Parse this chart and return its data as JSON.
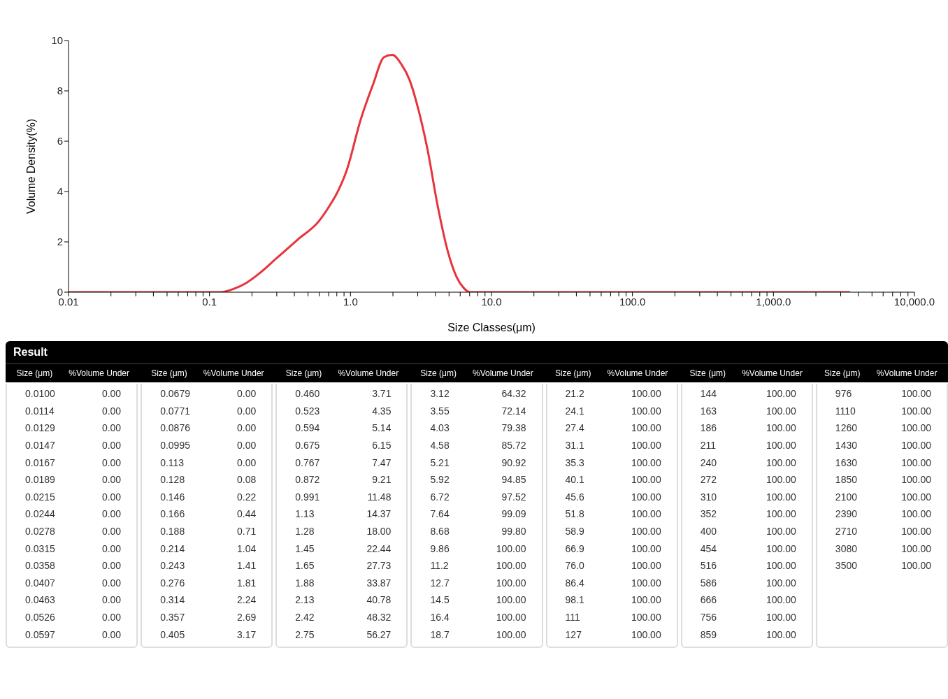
{
  "chart_data": [
    {
      "type": "line",
      "xlabel": "Size Classes(μm)",
      "ylabel": "Volume Density(%)",
      "log": "x",
      "marker": "none",
      "line_style": "solid",
      "x": [
        0.01,
        0.12,
        0.15,
        0.179,
        0.225,
        0.299,
        0.422,
        0.594,
        0.706,
        0.819,
        0.94,
        1.18,
        1.45,
        1.73,
        1.98,
        2.3,
        2.63,
        2.95,
        3.51,
        4.16,
        4.94,
        5.66,
        6.35,
        7.0,
        3500
      ],
      "series": [
        {
          "color": "#e8323c",
          "values": [
            0,
            0,
            0.14,
            0.34,
            0.74,
            1.35,
            2.09,
            2.81,
            3.41,
            4.04,
            4.84,
            6.85,
            8.28,
            9.34,
            9.43,
            9.05,
            8.42,
            7.51,
            5.7,
            3.41,
            1.55,
            0.6,
            0.17,
            0,
            0
          ]
        }
      ],
      "xlim": [
        0.01,
        10000
      ],
      "ylim": [
        0,
        10
      ],
      "yticks": [
        0,
        2,
        4,
        6,
        8,
        10
      ],
      "xticks": [
        0.01,
        {
          "value": 0.02,
          "label": null
        },
        {
          "value": 0.03,
          "label": null
        },
        {
          "value": 0.04,
          "label": null
        },
        {
          "value": 0.05,
          "label": null
        },
        {
          "value": 0.06,
          "label": null
        },
        {
          "value": 0.07,
          "label": null
        },
        {
          "value": 0.08,
          "label": null
        },
        {
          "value": 0.09,
          "label": null
        },
        0.1,
        {
          "value": 0.2,
          "label": null
        },
        {
          "value": 0.3,
          "label": null
        },
        {
          "value": 0.4,
          "label": null
        },
        {
          "value": 0.5,
          "label": null
        },
        {
          "value": 0.6,
          "label": null
        },
        {
          "value": 0.7,
          "label": null
        },
        {
          "value": 0.8,
          "label": null
        },
        {
          "value": 0.9,
          "label": null
        },
        {
          "value": 1,
          "label": "1.0"
        },
        {
          "value": 2,
          "label": null
        },
        {
          "value": 3,
          "label": null
        },
        {
          "value": 4,
          "label": null
        },
        {
          "value": 5,
          "label": null
        },
        {
          "value": 6,
          "label": null
        },
        {
          "value": 7,
          "label": null
        },
        {
          "value": 8,
          "label": null
        },
        {
          "value": 9,
          "label": null
        },
        {
          "value": 10,
          "label": "10.0"
        },
        {
          "value": 20,
          "label": null
        },
        {
          "value": 30,
          "label": null
        },
        {
          "value": 40,
          "label": null
        },
        {
          "value": 50,
          "label": null
        },
        {
          "value": 60,
          "label": null
        },
        {
          "value": 70,
          "label": null
        },
        {
          "value": 80,
          "label": null
        },
        {
          "value": 90,
          "label": null
        },
        {
          "value": 100,
          "label": "100.0"
        },
        {
          "value": 200,
          "label": null
        },
        {
          "value": 300,
          "label": null
        },
        {
          "value": 400,
          "label": null
        },
        {
          "value": 500,
          "label": null
        },
        {
          "value": 600,
          "label": null
        },
        {
          "value": 700,
          "label": null
        },
        {
          "value": 800,
          "label": null
        },
        {
          "value": 900,
          "label": null
        },
        {
          "value": 1000,
          "label": "1,000.0"
        },
        {
          "value": 2000,
          "label": null
        },
        {
          "value": 3000,
          "label": null
        },
        {
          "value": 4000,
          "label": null
        },
        {
          "value": 5000,
          "label": null
        },
        {
          "value": 6000,
          "label": null
        },
        {
          "value": 7000,
          "label": null
        },
        {
          "value": 8000,
          "label": null
        },
        {
          "value": 9000,
          "label": null
        },
        {
          "value": 10000,
          "label": "10,000.0"
        }
      ]
    },
    {
      "type": "other",
      "title": "Result",
      "xlabel": "Size (μm)",
      "ylabel": "%Volume Under",
      "categories": [
        "0.0100",
        "0.0114",
        "0.0129",
        "0.0147",
        "0.0167",
        "0.0189",
        "0.0215",
        "0.0244",
        "0.0278",
        "0.0315",
        "0.0358",
        "0.0407",
        "0.0463",
        "0.0526",
        "0.0597",
        "0.0679",
        "0.0771",
        "0.0876",
        "0.0995",
        "0.113",
        "0.128",
        "0.146",
        "0.166",
        "0.188",
        "0.214",
        "0.243",
        "0.276",
        "0.314",
        "0.357",
        "0.405",
        "0.460",
        "0.523",
        "0.594",
        "0.675",
        "0.767",
        "0.872",
        "0.991",
        "1.13",
        "1.28",
        "1.45",
        "1.65",
        "1.88",
        "2.13",
        "2.42",
        "2.75",
        "3.12",
        "3.55",
        "4.03",
        "4.58",
        "5.21",
        "5.92",
        "6.72",
        "7.64",
        "8.68",
        "9.86",
        "11.2",
        "12.7",
        "14.5",
        "16.4",
        "18.7",
        "21.2",
        "24.1",
        "27.4",
        "31.1",
        "35.3",
        "40.1",
        "45.6",
        "51.8",
        "58.9",
        "66.9",
        "76.0",
        "86.4",
        "98.1",
        "111",
        "127",
        "144",
        "163",
        "186",
        "211",
        "240",
        "272",
        "310",
        "352",
        "400",
        "454",
        "516",
        "586",
        "666",
        "756",
        "859",
        "976",
        "1110",
        "1260",
        "1430",
        "1630",
        "1850",
        "2100",
        "2390",
        "2710",
        "3080",
        "3500"
      ],
      "value_labels": [
        "0.00",
        "0.00",
        "0.00",
        "0.00",
        "0.00",
        "0.00",
        "0.00",
        "0.00",
        "0.00",
        "0.00",
        "0.00",
        "0.00",
        "0.00",
        "0.00",
        "0.00",
        "0.00",
        "0.00",
        "0.00",
        "0.00",
        "0.00",
        "0.08",
        "0.22",
        "0.44",
        "0.71",
        "1.04",
        "1.41",
        "1.81",
        "2.24",
        "2.69",
        "3.17",
        "3.71",
        "4.35",
        "5.14",
        "6.15",
        "7.47",
        "9.21",
        "11.48",
        "14.37",
        "18.00",
        "22.44",
        "27.73",
        "33.87",
        "40.78",
        "48.32",
        "56.27",
        "64.32",
        "72.14",
        "79.38",
        "85.72",
        "90.92",
        "94.85",
        "97.52",
        "99.09",
        "99.80",
        "100.00",
        "100.00",
        "100.00",
        "100.00",
        "100.00",
        "100.00",
        "100.00",
        "100.00",
        "100.00",
        "100.00",
        "100.00",
        "100.00",
        "100.00",
        "100.00",
        "100.00",
        "100.00",
        "100.00",
        "100.00",
        "100.00",
        "100.00",
        "100.00",
        "100.00",
        "100.00",
        "100.00",
        "100.00",
        "100.00",
        "100.00",
        "100.00",
        "100.00",
        "100.00",
        "100.00",
        "100.00",
        "100.00",
        "100.00",
        "100.00",
        "100.00",
        "100.00",
        "100.00",
        "100.00",
        "100.00",
        "100.00",
        "100.00",
        "100.00",
        "100.00",
        "100.00",
        "100.00",
        "100.00"
      ]
    }
  ]
}
